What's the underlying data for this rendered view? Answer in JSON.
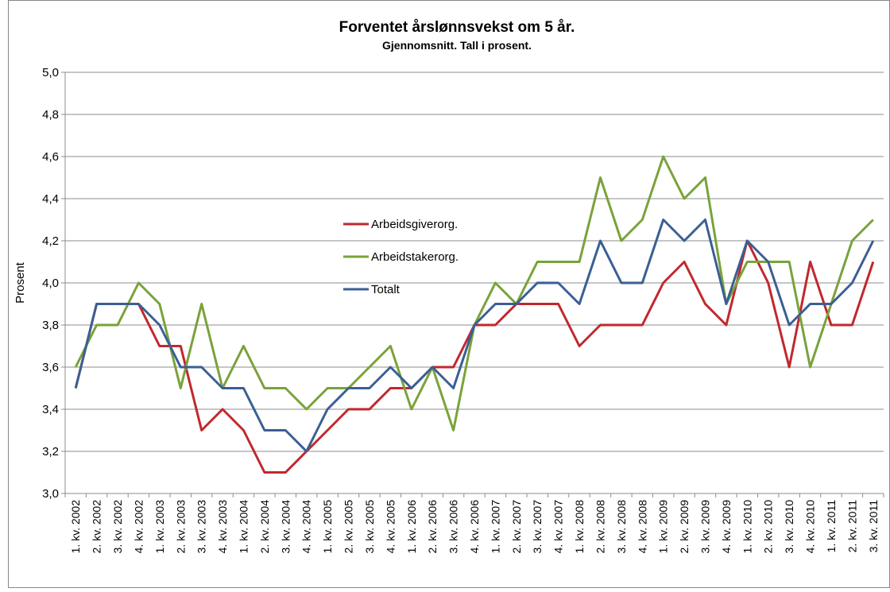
{
  "chart_data": {
    "type": "line",
    "title": "Forventet årslønnsvekst om 5 år.",
    "subtitle": "Gjennomsnitt. Tall i prosent.",
    "ylabel": "Prosent",
    "categories": [
      "1. kv. 2002",
      "2. kv. 2002",
      "3. kv. 2002",
      "4. kv. 2002",
      "1. kv. 2003",
      "2. kv. 2003",
      "3. kv. 2003",
      "4. kv. 2003",
      "1. kv. 2004",
      "2. kv. 2004",
      "3. kv. 2004",
      "4. kv. 2004",
      "1. kv. 2005",
      "2. kv. 2005",
      "3. kv. 2005",
      "4. kv. 2005",
      "1. kv. 2006",
      "2. kv. 2006",
      "3. kv. 2006",
      "4. kv. 2006",
      "1. kv. 2007",
      "2. kv. 2007",
      "3. kv. 2007",
      "4. kv. 2007",
      "1. kv. 2008",
      "2. kv. 2008",
      "3. kv. 2008",
      "4. kv. 2008",
      "1. kv. 2009",
      "2. kv. 2009",
      "3. kv. 2009",
      "4. kv. 2009",
      "1. kv. 2010",
      "2. kv. 2010",
      "3. kv. 2010",
      "4. kv. 2010",
      "1. kv. 2011",
      "2. kv. 2011",
      "3. kv. 2011"
    ],
    "series": [
      {
        "name": "Arbeidsgiverorg.",
        "color": "#c0282d",
        "values": [
          3.5,
          3.9,
          3.9,
          3.9,
          3.7,
          3.7,
          3.3,
          3.4,
          3.3,
          3.1,
          3.1,
          3.2,
          3.3,
          3.4,
          3.4,
          3.5,
          3.5,
          3.6,
          3.6,
          3.8,
          3.8,
          3.9,
          3.9,
          3.9,
          3.7,
          3.8,
          3.8,
          3.8,
          4.0,
          4.1,
          3.9,
          3.8,
          4.2,
          4.0,
          3.6,
          4.1,
          3.8,
          3.8,
          4.1
        ]
      },
      {
        "name": "Arbeidstakerorg.",
        "color": "#7aa23a",
        "values": [
          3.6,
          3.8,
          3.8,
          4.0,
          3.9,
          3.5,
          3.9,
          3.5,
          3.7,
          3.5,
          3.5,
          3.4,
          3.5,
          3.5,
          3.6,
          3.7,
          3.4,
          3.6,
          3.3,
          3.8,
          4.0,
          3.9,
          4.1,
          4.1,
          4.1,
          4.5,
          4.2,
          4.3,
          4.6,
          4.4,
          4.5,
          3.9,
          4.1,
          4.1,
          4.1,
          3.6,
          3.9,
          4.2,
          4.3
        ]
      },
      {
        "name": "Totalt",
        "color": "#3a5f94",
        "values": [
          3.5,
          3.9,
          3.9,
          3.9,
          3.8,
          3.6,
          3.6,
          3.5,
          3.5,
          3.3,
          3.3,
          3.2,
          3.4,
          3.5,
          3.5,
          3.6,
          3.5,
          3.6,
          3.5,
          3.8,
          3.9,
          3.9,
          4.0,
          4.0,
          3.9,
          4.2,
          4.0,
          4.0,
          4.3,
          4.2,
          4.3,
          3.9,
          4.2,
          4.1,
          3.8,
          3.9,
          3.9,
          4.0,
          4.2
        ]
      }
    ],
    "ylim": [
      3,
      5
    ],
    "yticks": [
      {
        "value": 3,
        "label": "3,0"
      },
      {
        "value": 3.2,
        "label": "3,2"
      },
      {
        "value": 3.4,
        "label": "3,4"
      },
      {
        "value": 3.6,
        "label": "3,6"
      },
      {
        "value": 3.8,
        "label": "3,8"
      },
      {
        "value": 4,
        "label": "4,0"
      },
      {
        "value": 4.2,
        "label": "4,2"
      },
      {
        "value": 4.4,
        "label": "4,4"
      },
      {
        "value": 4.6,
        "label": "4,6"
      },
      {
        "value": 4.8,
        "label": "4,8"
      },
      {
        "value": 5,
        "label": "5,0"
      }
    ],
    "grid": true,
    "legend": "center"
  }
}
